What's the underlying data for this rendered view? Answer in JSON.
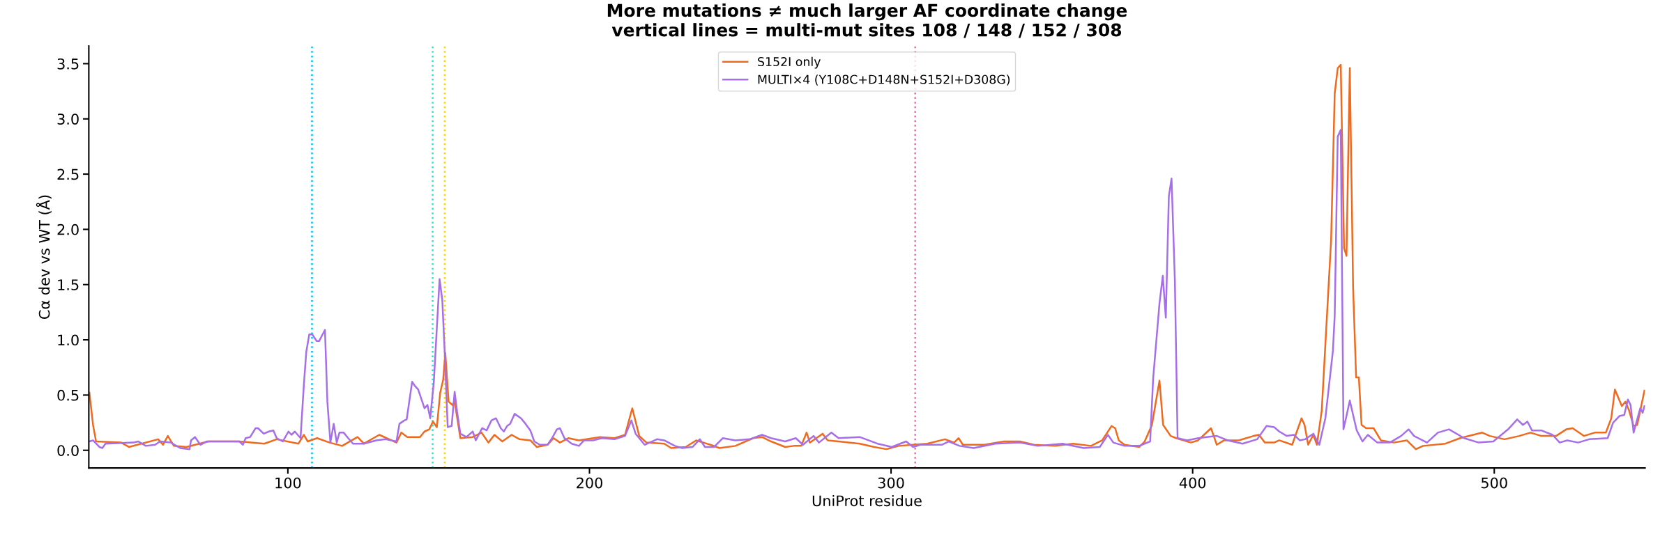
{
  "chart_data": {
    "type": "line",
    "title": "More mutations ≠ much larger AF coordinate change\nvertical lines = multi-mut sites 108 / 148 / 152 / 308",
    "xlabel": "UniProt residue",
    "ylabel": "Cα dev vs WT (Å)",
    "xlim": [
      34,
      550
    ],
    "ylim": [
      -0.16,
      3.66
    ],
    "xticks": [
      100,
      200,
      300,
      400,
      500
    ],
    "yticks": [
      {
        "value": 0,
        "label": "0.0"
      },
      {
        "value": 0.5,
        "label": "0.5"
      },
      {
        "value": 1,
        "label": "1.0"
      },
      {
        "value": 1.5,
        "label": "1.5"
      },
      {
        "value": 2,
        "label": "2.0"
      },
      {
        "value": 2.5,
        "label": "2.5"
      },
      {
        "value": 3,
        "label": "3.0"
      },
      {
        "value": 3.5,
        "label": "3.5"
      }
    ],
    "grid": false,
    "legend": "top",
    "marker": "none",
    "line_style": "solid",
    "ref_lines": [
      {
        "axis": "x",
        "value": 108,
        "color": "#00bfff",
        "line_style": "dotted"
      },
      {
        "axis": "x",
        "value": 148,
        "color": "#1ee8d6",
        "line_style": "dotted"
      },
      {
        "axis": "x",
        "value": 152,
        "color": "#ffd700",
        "line_style": "dotted"
      },
      {
        "axis": "x",
        "value": 308,
        "color": "#f06aa8",
        "line_style": "dotted"
      }
    ],
    "series": [
      {
        "name": "S152I only",
        "color": "#ee6a1e",
        "x": [
          34.2,
          35.4,
          36.4,
          44.7,
          47.3,
          57,
          58.6,
          60.2,
          62.2,
          66.4,
          73.6,
          83.9,
          92.2,
          96.3,
          103.5,
          105.3,
          106.6,
          109.7,
          113.8,
          118,
          123.1,
          125.2,
          130.3,
          136,
          137.6,
          139.6,
          143.8,
          145.3,
          146.9,
          148.1,
          149.4,
          150.5,
          151.5,
          152.2,
          153.3,
          154.6,
          155.3,
          157.2,
          161.3,
          164.2,
          166.5,
          168.5,
          171.1,
          174.2,
          176.8,
          180.4,
          182.5,
          186.1,
          188.1,
          190.2,
          193,
          196.5,
          203.5,
          208.3,
          211.8,
          214.2,
          216.5,
          218.9,
          224.8,
          227.1,
          231.9,
          235.4,
          240.1,
          243.1,
          248.4,
          254.3,
          257.2,
          260.2,
          264.9,
          267.8,
          270.2,
          272,
          273.1,
          277.3,
          279,
          282.6,
          289.6,
          294.4,
          298.5,
          302.6,
          307.3,
          312,
          317.9,
          320.9,
          322.4,
          323.8,
          330.9,
          337.4,
          342.7,
          347.4,
          354.5,
          360.4,
          366.3,
          370,
          373.1,
          374.3,
          375.5,
          377.4,
          382.3,
          384.1,
          386.5,
          389,
          390.2,
          392.7,
          394.5,
          399.4,
          401.8,
          406.1,
          408,
          410.4,
          415.3,
          420.2,
          422,
          423.9,
          427,
          428.7,
          433,
          436.1,
          437.1,
          438.3,
          440,
          441.2,
          442.8,
          445.9,
          447.1,
          448.1,
          449.1,
          450.2,
          451,
          452.1,
          453.2,
          454.2,
          455.1,
          456,
          457.5,
          460,
          462.4,
          466.7,
          471,
          474,
          476.4,
          483.8,
          488.7,
          496,
          498.5,
          503.4,
          508.3,
          512,
          515.6,
          520.5,
          523.9,
          526,
          529.7,
          533.3,
          537,
          538.8,
          540,
          542.3,
          543.5,
          544.7,
          546.2,
          547.4,
          549.8
        ],
        "values": [
          0.52,
          0.23,
          0.08,
          0.07,
          0.03,
          0.1,
          0.05,
          0.13,
          0.04,
          0.03,
          0.08,
          0.08,
          0.06,
          0.1,
          0.06,
          0.14,
          0.08,
          0.11,
          0.07,
          0.04,
          0.12,
          0.06,
          0.14,
          0.07,
          0.16,
          0.12,
          0.12,
          0.17,
          0.19,
          0.26,
          0.21,
          0.52,
          0.64,
          0.88,
          0.44,
          0.41,
          0.44,
          0.11,
          0.12,
          0.16,
          0.07,
          0.14,
          0.08,
          0.14,
          0.1,
          0.09,
          0.03,
          0.05,
          0.11,
          0.07,
          0.11,
          0.09,
          0.12,
          0.11,
          0.14,
          0.38,
          0.13,
          0.07,
          0.06,
          0.02,
          0.03,
          0.09,
          0.05,
          0.02,
          0.04,
          0.11,
          0.12,
          0.08,
          0.03,
          0.04,
          0.04,
          0.16,
          0.07,
          0.15,
          0.09,
          0.08,
          0.06,
          0.03,
          0.01,
          0.04,
          0.05,
          0.06,
          0.1,
          0.07,
          0.11,
          0.05,
          0.05,
          0.08,
          0.08,
          0.05,
          0.04,
          0.06,
          0.04,
          0.09,
          0.22,
          0.2,
          0.09,
          0.05,
          0.03,
          0.08,
          0.23,
          0.63,
          0.23,
          0.13,
          0.11,
          0.07,
          0.09,
          0.2,
          0.05,
          0.09,
          0.09,
          0.13,
          0.14,
          0.07,
          0.07,
          0.09,
          0.05,
          0.29,
          0.23,
          0.05,
          0.14,
          0.05,
          0.36,
          1.9,
          3.23,
          3.46,
          3.49,
          1.83,
          1.76,
          3.46,
          1.47,
          0.66,
          0.66,
          0.23,
          0.2,
          0.2,
          0.09,
          0.07,
          0.09,
          0.01,
          0.04,
          0.06,
          0.11,
          0.16,
          0.13,
          0.1,
          0.13,
          0.16,
          0.13,
          0.13,
          0.19,
          0.2,
          0.13,
          0.16,
          0.16,
          0.29,
          0.55,
          0.4,
          0.44,
          0.36,
          0.22,
          0.23,
          0.54
        ]
      },
      {
        "name": "MULTI×4 (Y108C+D148N+S152I+D308G)",
        "color": "#a66ee8",
        "x": [
          34.2,
          35.4,
          37.5,
          38.5,
          39.5,
          48.8,
          50.4,
          52.9,
          56,
          57.6,
          61.2,
          64.3,
          67.4,
          67.9,
          69.2,
          71,
          73.1,
          80.8,
          83.9,
          85.1,
          86,
          87.5,
          89.3,
          90.1,
          92,
          93.7,
          95.2,
          96.3,
          98.3,
          100.2,
          101.2,
          102.3,
          104.2,
          105.3,
          106.1,
          107.1,
          108.1,
          109.5,
          110.4,
          112.3,
          113.1,
          114.1,
          115.2,
          116.2,
          117.1,
          118.5,
          120,
          121.6,
          125.2,
          129.3,
          132.4,
          136,
          137,
          138.6,
          139.4,
          141.2,
          142.2,
          143.2,
          145.3,
          146.3,
          147.2,
          148.4,
          149.4,
          150.3,
          151.2,
          152,
          153,
          154.3,
          155.3,
          156.1,
          157.2,
          159.2,
          161.3,
          162.3,
          164.4,
          165.9,
          167.5,
          169,
          170.6,
          171.6,
          172.7,
          173.7,
          175.2,
          177.3,
          178.8,
          180.4,
          181.7,
          183.5,
          186.1,
          187.6,
          189.2,
          190.2,
          191.7,
          194.1,
          196.5,
          198.2,
          201.2,
          204.1,
          208.3,
          211.8,
          213.9,
          215.3,
          218.3,
          222.4,
          224.8,
          228.3,
          230.7,
          234.2,
          236.6,
          238.3,
          241.3,
          244.2,
          248.4,
          253.1,
          257.2,
          260.2,
          264.9,
          268.4,
          270.8,
          274.3,
          276.1,
          280.2,
          282.6,
          289.6,
          295.5,
          300.2,
          305,
          307.3,
          309.7,
          316.8,
          319.1,
          322.7,
          327.4,
          334.5,
          342.7,
          348.6,
          356.9,
          363.9,
          369.2,
          371.9,
          373.7,
          377.4,
          382.3,
          385.9,
          386.9,
          389,
          390.1,
          391.1,
          392.1,
          393,
          394.1,
          395,
          398.2,
          401.8,
          408,
          411.6,
          416.5,
          421.4,
          424.5,
          427,
          428.7,
          431.2,
          433.6,
          435.5,
          437.3,
          440,
          442,
          444,
          446.5,
          447.1,
          448.1,
          449.1,
          450,
          451,
          452.1,
          453.2,
          454.4,
          456.3,
          458.1,
          461.2,
          465.4,
          469.1,
          471.6,
          473.4,
          477.7,
          481.3,
          485,
          490,
          494.8,
          499.7,
          504.6,
          507.6,
          509.5,
          511,
          512.5,
          515.6,
          519.3,
          521.7,
          524.2,
          527.8,
          531.5,
          537.6,
          539.4,
          541.5,
          543.1,
          544.3,
          545.2,
          546.2,
          548.4,
          549.2,
          549.8
        ],
        "values": [
          0.08,
          0.09,
          0.03,
          0.02,
          0.06,
          0.07,
          0.08,
          0.04,
          0.05,
          0.08,
          0.07,
          0.02,
          0.01,
          0.09,
          0.12,
          0.05,
          0.08,
          0.08,
          0.08,
          0.05,
          0.11,
          0.12,
          0.2,
          0.2,
          0.15,
          0.17,
          0.18,
          0.11,
          0.08,
          0.17,
          0.14,
          0.17,
          0.11,
          0.59,
          0.89,
          1.05,
          1.05,
          0.99,
          0.99,
          1.09,
          0.44,
          0.07,
          0.24,
          0.07,
          0.16,
          0.16,
          0.11,
          0.06,
          0.06,
          0.09,
          0.1,
          0.08,
          0.24,
          0.27,
          0.28,
          0.62,
          0.58,
          0.55,
          0.38,
          0.41,
          0.29,
          0.62,
          1.11,
          1.55,
          1.36,
          0.89,
          0.21,
          0.22,
          0.53,
          0.35,
          0.15,
          0.12,
          0.17,
          0.09,
          0.2,
          0.18,
          0.27,
          0.29,
          0.2,
          0.17,
          0.22,
          0.24,
          0.33,
          0.29,
          0.24,
          0.18,
          0.08,
          0.05,
          0.05,
          0.11,
          0.19,
          0.2,
          0.11,
          0.06,
          0.04,
          0.09,
          0.09,
          0.11,
          0.1,
          0.13,
          0.27,
          0.15,
          0.05,
          0.1,
          0.09,
          0.04,
          0.02,
          0.03,
          0.1,
          0.03,
          0.03,
          0.11,
          0.09,
          0.1,
          0.14,
          0.11,
          0.08,
          0.11,
          0.05,
          0.13,
          0.07,
          0.16,
          0.11,
          0.12,
          0.06,
          0.03,
          0.08,
          0.03,
          0.05,
          0.05,
          0.08,
          0.04,
          0.02,
          0.06,
          0.07,
          0.04,
          0.06,
          0.02,
          0.03,
          0.14,
          0.07,
          0.04,
          0.04,
          0.08,
          0.65,
          1.33,
          1.58,
          1.2,
          2.3,
          2.46,
          1.54,
          0.11,
          0.09,
          0.11,
          0.13,
          0.09,
          0.06,
          0.1,
          0.22,
          0.21,
          0.17,
          0.13,
          0.14,
          0.09,
          0.1,
          0.15,
          0.05,
          0.29,
          0.9,
          1.22,
          2.84,
          2.9,
          0.19,
          0.31,
          0.45,
          0.32,
          0.18,
          0.08,
          0.14,
          0.07,
          0.07,
          0.13,
          0.19,
          0.13,
          0.07,
          0.16,
          0.19,
          0.11,
          0.07,
          0.08,
          0.19,
          0.28,
          0.23,
          0.26,
          0.18,
          0.18,
          0.14,
          0.07,
          0.09,
          0.07,
          0.1,
          0.11,
          0.25,
          0.31,
          0.32,
          0.46,
          0.41,
          0.16,
          0.38,
          0.34,
          0.4
        ]
      }
    ]
  }
}
